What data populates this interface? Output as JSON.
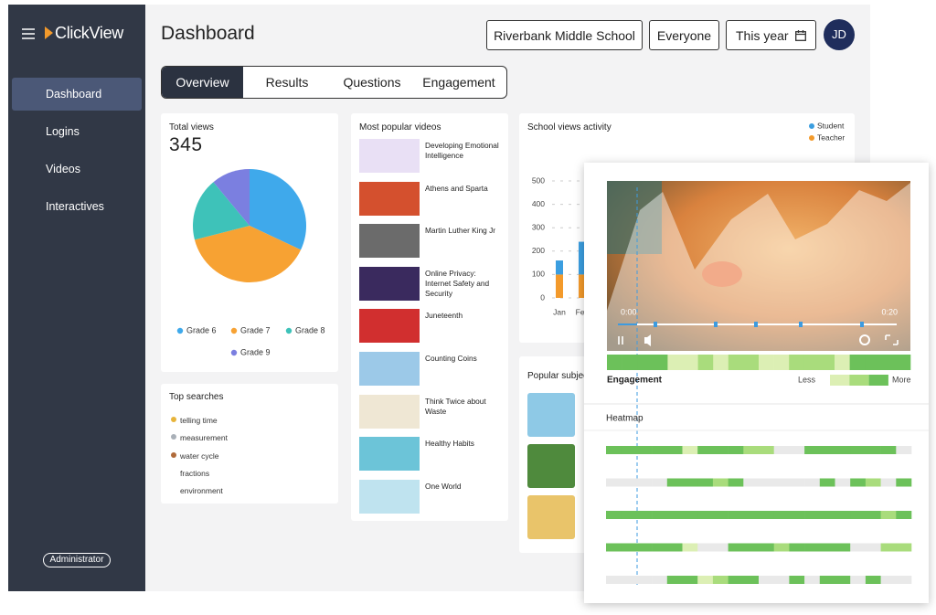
{
  "sidebar": {
    "logo": "ClickView",
    "nav": [
      "Dashboard",
      "Logins",
      "Videos",
      "Interactives"
    ],
    "role": "Administrator"
  },
  "header": {
    "title": "Dashboard",
    "school": "Riverbank Middle School",
    "audience": "Everyone",
    "period": "This year",
    "avatar": "JD"
  },
  "tabs": [
    "Overview",
    "Results",
    "Questions",
    "Engagement"
  ],
  "chart_data": [
    {
      "type": "pie",
      "title": "Total views",
      "total": 345,
      "categories": [
        "Grade 6",
        "Grade 7",
        "Grade 8",
        "Grade 9"
      ],
      "values": [
        32,
        39,
        18,
        11
      ],
      "colors": [
        "#3fa9eb",
        "#f7a233",
        "#3ec2b9",
        "#7b7fe0"
      ]
    },
    {
      "type": "bar",
      "title": "School views activity",
      "stacked": true,
      "categories": [
        "Jan",
        "Feb"
      ],
      "series": [
        {
          "name": "Student",
          "color": "#3b9ee0",
          "values": [
            60,
            140
          ]
        },
        {
          "name": "Teacher",
          "color": "#f39a2b",
          "values": [
            100,
            100
          ]
        }
      ],
      "ylim": [
        0,
        500
      ],
      "yticks": [
        0,
        100,
        200,
        300,
        400,
        500
      ],
      "grid": true
    }
  ],
  "top_searches": {
    "title": "Top searches",
    "items": [
      "telling time",
      "measurement",
      "water cycle",
      "fractions",
      "environment"
    ]
  },
  "popular_videos": {
    "title": "Most popular videos",
    "items": [
      "Developing Emotional Intelligence",
      "Athens and Sparta",
      "Martin Luther King Jr",
      "Online Privacy: Internet Safety and Security",
      "Juneteenth",
      "Counting Coins",
      "Think Twice about Waste",
      "Healthy Habits",
      "One World"
    ]
  },
  "popular_subjects": {
    "title": "Popular subjects"
  },
  "player": {
    "start": "0:00",
    "end": "0:20",
    "engagement_label": "Engagement",
    "less": "Less",
    "more": "More",
    "heatmap_title": "Heatmap",
    "colors": [
      "#e9e9e9",
      "#dcefb4",
      "#a9dc7c",
      "#6cc15a"
    ],
    "engagement": [
      3,
      3,
      3,
      3,
      1,
      1,
      2,
      1,
      2,
      2,
      1,
      1,
      2,
      2,
      2,
      1,
      3,
      3,
      3,
      3
    ],
    "heatmap": [
      [
        3,
        3,
        3,
        3,
        3,
        1,
        3,
        3,
        3,
        2,
        2,
        0,
        0,
        3,
        3,
        3,
        3,
        3,
        3,
        0
      ],
      [
        0,
        0,
        0,
        0,
        3,
        3,
        3,
        2,
        3,
        0,
        0,
        0,
        0,
        0,
        3,
        0,
        3,
        2,
        0,
        3
      ],
      [
        3,
        3,
        3,
        3,
        3,
        3,
        3,
        3,
        3,
        3,
        3,
        3,
        3,
        3,
        3,
        3,
        3,
        3,
        2,
        3
      ],
      [
        3,
        3,
        3,
        3,
        3,
        1,
        0,
        0,
        3,
        3,
        3,
        2,
        3,
        3,
        3,
        3,
        0,
        0,
        2,
        2
      ],
      [
        0,
        0,
        0,
        0,
        3,
        3,
        1,
        2,
        3,
        3,
        0,
        0,
        3,
        0,
        3,
        3,
        0,
        3,
        0,
        0
      ]
    ]
  }
}
